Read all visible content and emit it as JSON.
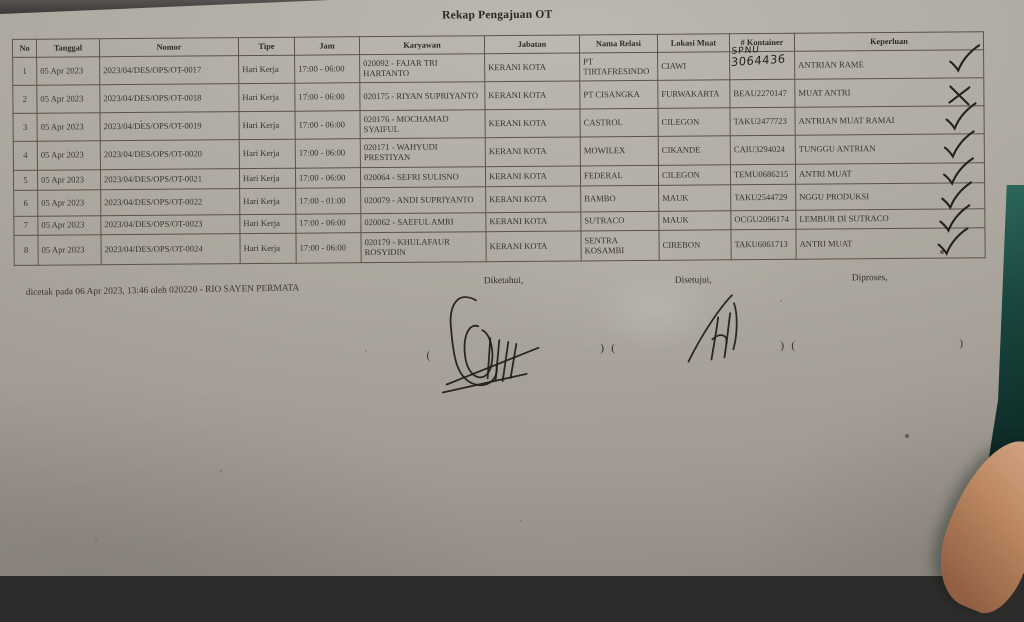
{
  "title": "Rekap Pengajuan OT",
  "table": {
    "columns": [
      "No",
      "Tanggal",
      "Nomor",
      "Tipe",
      "Jam",
      "Karyawan",
      "Jabatan",
      "Nama Relasi",
      "Lokasi Muat",
      "# Kontainer",
      "Keperluan"
    ],
    "rows": [
      {
        "no": "1",
        "tanggal": "05 Apr 2023",
        "nomor": "2023/04/DES/OPS/OT-0017",
        "tipe": "Hari Kerja",
        "jam": "17:00 - 06:00",
        "karyawan": "020092 - FAJAR TRI HARTANTO",
        "jabatan": "KERANI KOTA",
        "relasi": "PT TIRTAFRESINDO",
        "lokasi": "CIAWI",
        "kontainer": "",
        "hw1": "SPNU",
        "hw2": "3064436",
        "keperluan": "ANTRIAN RAME",
        "mark": "check"
      },
      {
        "no": "2",
        "tanggal": "05 Apr 2023",
        "nomor": "2023/04/DES/OPS/OT-0018",
        "tipe": "Hari Kerja",
        "jam": "17:00 - 06:00",
        "karyawan": "020175 - RIYAN SUPRIYANTO",
        "jabatan": "KERANI KOTA",
        "relasi": "PT CISANGKA",
        "lokasi": "FURWAKARTA",
        "kontainer": "BEAU2270147",
        "keperluan": "MUAT ANTRI",
        "mark": "x"
      },
      {
        "no": "3",
        "tanggal": "05 Apr 2023",
        "nomor": "2023/04/DES/OPS/OT-0019",
        "tipe": "Hari Kerja",
        "jam": "17:00 - 06:00",
        "karyawan": "020176 - MOCHAMAD SYAIFUL",
        "jabatan": "KERANI KOTA",
        "relasi": "CASTROL",
        "lokasi": "CILEGON",
        "kontainer": "TAKU2477723",
        "keperluan": "ANTRIAN MUAT RAMAI",
        "mark": "check"
      },
      {
        "no": "4",
        "tanggal": "05 Apr 2023",
        "nomor": "2023/04/DES/OPS/OT-0020",
        "tipe": "Hari Kerja",
        "jam": "17:00 - 06:00",
        "karyawan": "020171 - WAHYUDI PRESTIYAN",
        "jabatan": "KERANI KOTA",
        "relasi": "MOWILEX",
        "lokasi": "CIKANDE",
        "kontainer": "CAIU3294024",
        "keperluan": "TUNGGU ANTRIAN",
        "mark": "check"
      },
      {
        "no": "5",
        "tanggal": "05 Apr 2023",
        "nomor": "2023/04/DES/OPS/OT-0021",
        "tipe": "Hari Kerja",
        "jam": "17:00 - 06:00",
        "karyawan": "020064 - SEFRI SULISNO",
        "jabatan": "KERANI KOTA",
        "relasi": "FEDERAL",
        "lokasi": "CILEGON",
        "kontainer": "TEMU0686215",
        "keperluan": "ANTRI MUAT",
        "mark": "check"
      },
      {
        "no": "6",
        "tanggal": "05 Apr 2023",
        "nomor": "2023/04/DES/OPS/OT-0022",
        "tipe": "Hari Kerja",
        "jam": "17:00 - 01:00",
        "karyawan": "020079 - ANDI SUPRIYANTO",
        "jabatan": "KERANI KOTA",
        "relasi": "BAMBO",
        "lokasi": "MAUK",
        "kontainer": "TAKU2544729",
        "keperluan": "NGGU PRODUKSI",
        "mark": "check"
      },
      {
        "no": "7",
        "tanggal": "05 Apr 2023",
        "nomor": "2023/04/DES/OPS/OT-0023",
        "tipe": "Hari Kerja",
        "jam": "17:00 - 06:00",
        "karyawan": "020062 - SAEFUL AMRI",
        "jabatan": "KERANI KOTA",
        "relasi": "SUTRACO",
        "lokasi": "MAUK",
        "kontainer": "OCGU2096174",
        "keperluan": "LEMBUR DI SUTRACO",
        "mark": "check"
      },
      {
        "no": "8",
        "tanggal": "05 Apr 2023",
        "nomor": "2023/04/DES/OPS/OT-0024",
        "tipe": "Hari Kerja",
        "jam": "17:00 - 06:00",
        "karyawan": "020179 - KHULAFAUR ROSYIDIN",
        "jabatan": "KERANI KOTA",
        "relasi": "SENTRA KOSAMBI",
        "lokasi": "CIREBON",
        "kontainer": "TAKU6061713",
        "keperluan": "ANTRI MUAT",
        "mark": "check"
      }
    ]
  },
  "footer": {
    "printed_note": "dicetak pada 06 Apr 2023, 13:46 oleh 020220 - RIO SAYEN PERMATA",
    "sign_labels": [
      "Diketahui,",
      "Disetujui,",
      "Diproses,"
    ],
    "paren_marks": [
      "(",
      ")",
      "(",
      ")",
      "(",
      ")"
    ]
  },
  "colors": {
    "paper": "#ada89f",
    "ink": "#36312c",
    "table_border": "#5b5349",
    "handwriting": "#242120",
    "background_teal": "#17423c",
    "background_dark": "#3b3937",
    "finger_skin": "#bc8962"
  }
}
